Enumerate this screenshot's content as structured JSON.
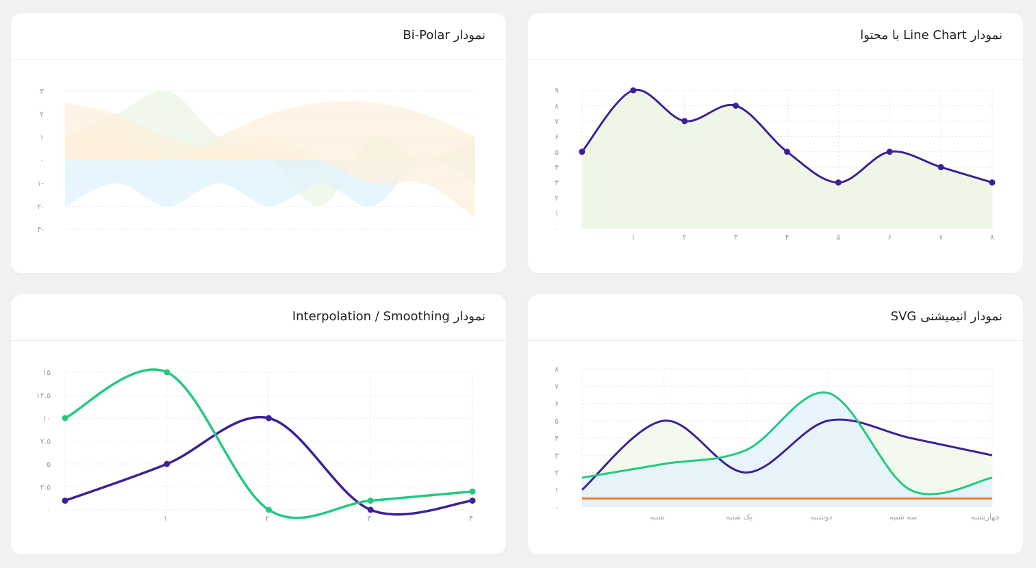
{
  "cards": {
    "line_content": {
      "title": "نمودار Line Chart با محتوا"
    },
    "bipolar": {
      "title": "نمودار Bi-Polar"
    },
    "animated": {
      "title": "نمودار انیمیشنی SVG"
    },
    "smoothing": {
      "title": "نمودار Interpolation / Smoothing"
    }
  },
  "colors": {
    "purple": "#3f1f97",
    "green": "#22c97f",
    "orange": "#f47b20",
    "area_green": "#eef7e6",
    "area_blue": "#dff1fc",
    "area_orange": "#fdf0dc",
    "area_lightgreen": "#eaf6e3"
  },
  "chart_data": [
    {
      "id": "line_content",
      "type": "area",
      "x": [
        0,
        1,
        2,
        3,
        4,
        5,
        6,
        7,
        8
      ],
      "xtick_labels": [
        "",
        "۱",
        "۲",
        "۳",
        "۴",
        "۵",
        "۶",
        "۷",
        "۸"
      ],
      "ytick_labels": [
        "۰",
        "۱",
        "۲",
        "۳",
        "۴",
        "۵",
        "۶",
        "۷",
        "۸",
        "۹"
      ],
      "ylim": [
        0,
        9
      ],
      "series": [
        {
          "values": [
            5,
            9,
            7,
            8,
            5,
            3,
            5,
            4,
            3
          ]
        }
      ],
      "grid": true
    },
    {
      "id": "bipolar",
      "type": "area",
      "ylim": [
        -3,
        3
      ],
      "ytick_labels": [
        "۳-",
        "۲-",
        "۱-",
        "۰",
        "۱",
        "۲",
        "۳"
      ],
      "x": [
        0,
        1,
        2,
        3,
        4,
        5,
        6,
        7,
        8
      ],
      "series": [
        {
          "values": [
            1,
            2,
            3,
            1,
            0,
            -2,
            1,
            0,
            1
          ]
        },
        {
          "values": [
            -2,
            -1,
            -2,
            -1,
            -2,
            -1,
            -2,
            0,
            -1
          ]
        },
        {
          "values": [
            2.5,
            2,
            1,
            0.5,
            1,
            0,
            -1,
            -1,
            -2.5
          ]
        },
        {
          "values": [
            1,
            1.5,
            0,
            1,
            2,
            2.5,
            2.5,
            2,
            1
          ]
        }
      ],
      "grid": true
    },
    {
      "id": "animated",
      "type": "area",
      "categories": [
        "",
        "شنبه",
        "یک شنبه",
        "دوشنبه",
        "سه شنبه",
        "چهارشنبه"
      ],
      "ylim": [
        0,
        8
      ],
      "ytick_labels": [
        "۰",
        "۱",
        "۲",
        "۳",
        "۴",
        "۵",
        "۶",
        "۷",
        "۸"
      ],
      "series": [
        {
          "values": [
            1,
            5,
            2,
            5,
            4,
            3
          ]
        },
        {
          "values": [
            1.7,
            2.5,
            3.3,
            6.6,
            1,
            1.7
          ]
        },
        {
          "values": [
            0.5,
            0.5,
            0.5,
            0.5,
            0.5,
            0.5
          ]
        }
      ],
      "grid": true
    },
    {
      "id": "smoothing",
      "type": "line",
      "x": [
        0,
        1,
        2,
        3,
        4
      ],
      "xtick_labels": [
        "",
        "۱",
        "۲",
        "۳",
        "۴"
      ],
      "ylim": [
        0,
        15
      ],
      "ytick_labels": [
        "۰",
        "۲.۵",
        "۵",
        "۷.۵",
        "۱۰",
        "۱۲.۵",
        "۱۵"
      ],
      "series": [
        {
          "values": [
            1,
            5,
            10,
            0,
            1
          ]
        },
        {
          "values": [
            10,
            15,
            0,
            1,
            2
          ]
        }
      ],
      "grid": true
    }
  ]
}
